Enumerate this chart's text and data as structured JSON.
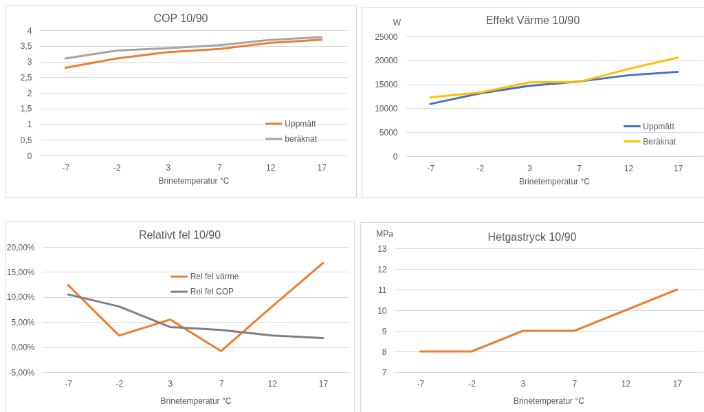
{
  "chart_data": [
    {
      "type": "line",
      "title": "COP 10/90",
      "xlabel": "Brinetemperatur °C",
      "categories": [
        "-7",
        "-2",
        "3",
        "7",
        "12",
        "17"
      ],
      "series": [
        {
          "name": "Uppmätt",
          "color": "#ed7d31",
          "values": [
            2.8,
            3.1,
            3.3,
            3.4,
            3.6,
            3.7
          ]
        },
        {
          "name": "beräknat",
          "color": "#a5a5a5",
          "values": [
            3.1,
            3.35,
            3.43,
            3.52,
            3.69,
            3.78
          ]
        }
      ],
      "ylim": [
        0,
        4
      ],
      "yticks": [
        0,
        {
          "value": 0.5,
          "label": "0,5"
        },
        1,
        {
          "value": 1.5,
          "label": "1,5"
        },
        2,
        {
          "value": 2.5,
          "label": "2,5"
        },
        3,
        {
          "value": 3.5,
          "label": "3,5"
        },
        4
      ],
      "grid": "y",
      "legend": "bottom right"
    },
    {
      "type": "line",
      "title": "Effekt Värme 10/90",
      "xlabel": "Brinetemperatur °C",
      "ylabel": "W",
      "categories": [
        "-7",
        "-2",
        "3",
        "7",
        "12",
        "17"
      ],
      "series": [
        {
          "name": "Uppmätt",
          "color": "#4472c4",
          "values": [
            10900,
            13100,
            14700,
            15600,
            16900,
            17600
          ]
        },
        {
          "name": "Beräknat",
          "color": "#ffc000",
          "values": [
            12300,
            13300,
            15400,
            15500,
            18200,
            20600
          ]
        }
      ],
      "ylim": [
        0,
        25000
      ],
      "yticks": [
        0,
        5000,
        10000,
        15000,
        20000,
        25000
      ],
      "grid": "y",
      "legend": "bottom right"
    },
    {
      "type": "line",
      "title": "Relativt fel 10/90",
      "xlabel": "Brinetemperatur °C",
      "categories": [
        "-7",
        "-2",
        "3",
        "7",
        "12",
        "17"
      ],
      "series": [
        {
          "name": "Rel fel värme",
          "color": "#ed7d31",
          "values": [
            12.4,
            2.3,
            5.5,
            -0.8,
            8.1,
            16.8
          ]
        },
        {
          "name": "Rel fel COP",
          "color": "#7f7f7f",
          "values": [
            10.5,
            8.1,
            4.0,
            3.4,
            2.3,
            1.8
          ]
        }
      ],
      "ylim": [
        -5,
        20
      ],
      "yticks": [
        {
          "value": -5,
          "label": "-5,00%"
        },
        {
          "value": 0,
          "label": "0,00%"
        },
        {
          "value": 5,
          "label": "5,00%"
        },
        {
          "value": 10,
          "label": "10,00%"
        },
        {
          "value": 15,
          "label": "15,00%"
        },
        {
          "value": 20,
          "label": "20,00%"
        }
      ],
      "grid": "y",
      "legend": "top"
    },
    {
      "type": "line",
      "title": "Hetgastryck 10/90",
      "xlabel": "Brinetemperatur °C",
      "ylabel": "MPa",
      "categories": [
        "-7",
        "-2",
        "3",
        "7",
        "12",
        "17"
      ],
      "series": [
        {
          "color": "#ed7d31",
          "values": [
            8,
            8,
            9,
            9,
            10,
            11
          ]
        }
      ],
      "ylim": [
        7,
        13
      ],
      "yticks": [
        7,
        8,
        9,
        10,
        11,
        12,
        13
      ],
      "grid": "y"
    }
  ]
}
